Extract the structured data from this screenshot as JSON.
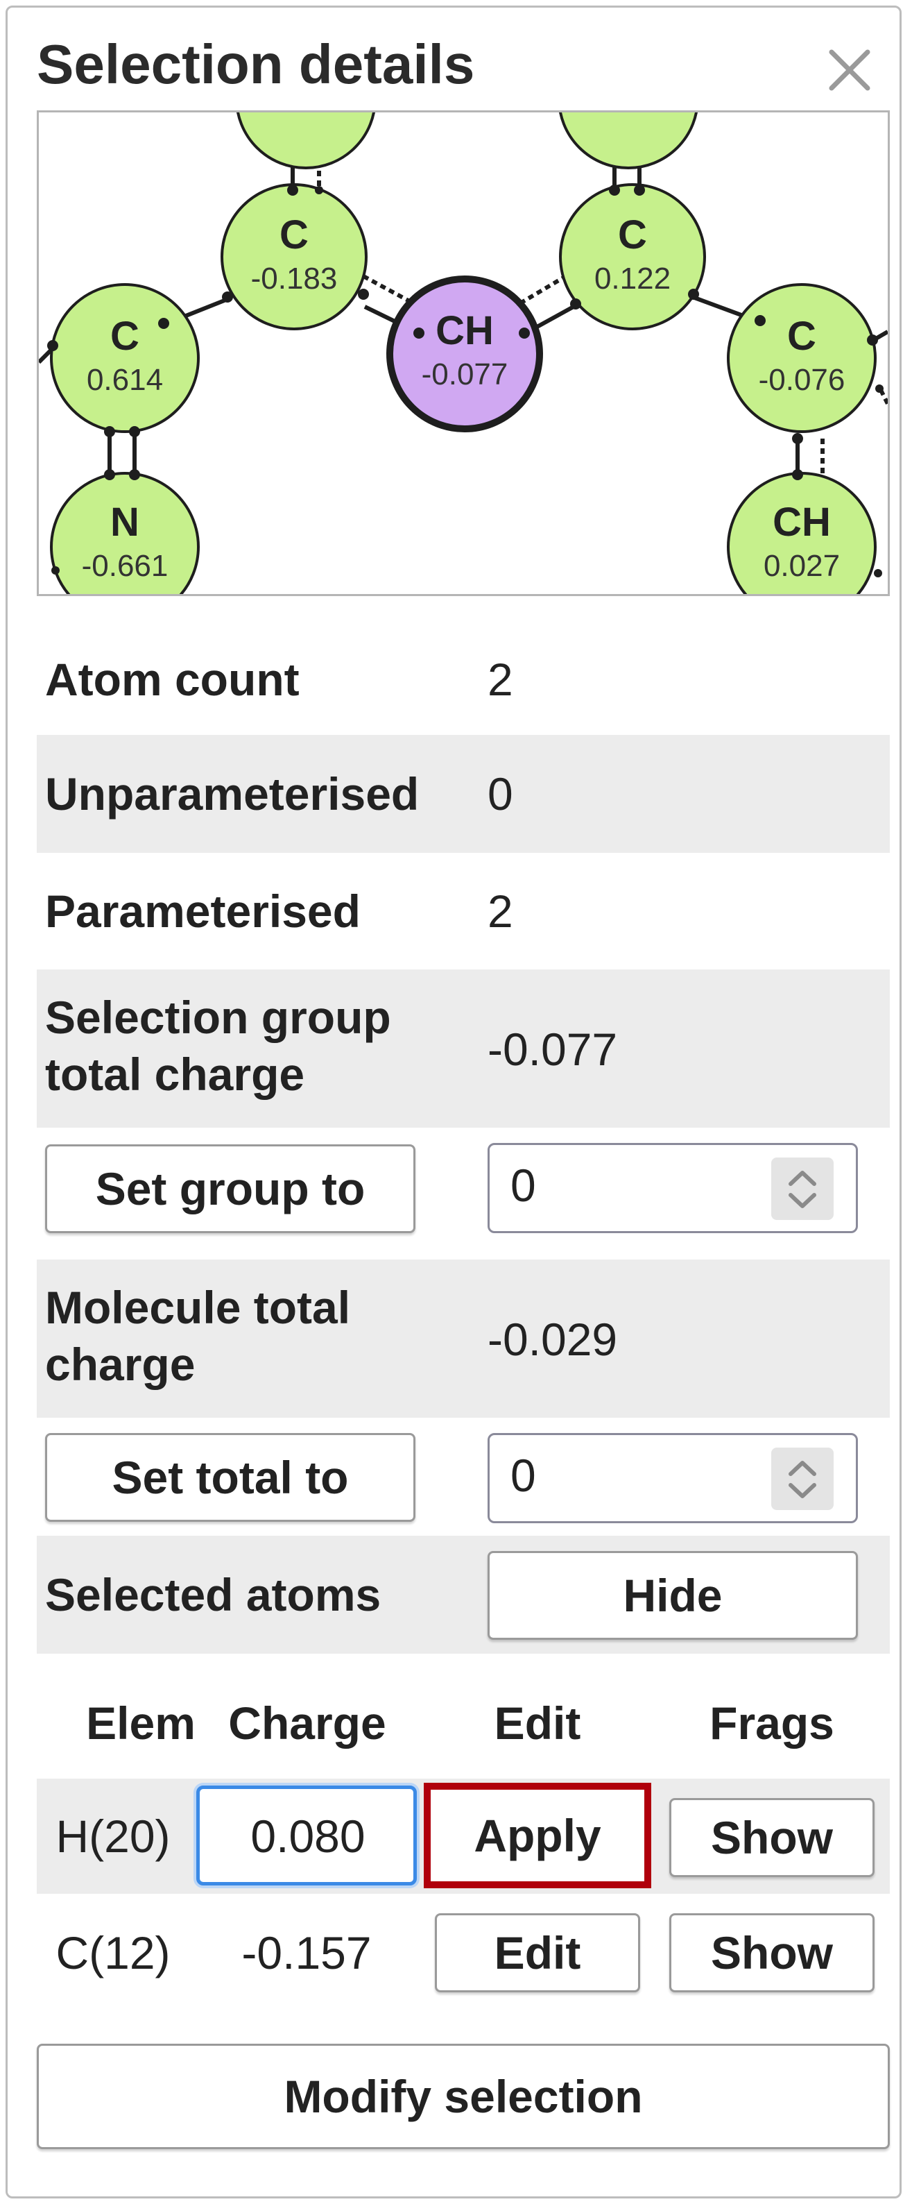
{
  "panel": {
    "title": "Selection details",
    "close_icon": "close-icon"
  },
  "molecule": {
    "atoms": [
      {
        "element": "C",
        "charge": "-0.183"
      },
      {
        "element": "C",
        "charge": "0.614"
      },
      {
        "element": "CH",
        "charge": "-0.077",
        "selected": true
      },
      {
        "element": "C",
        "charge": "0.122"
      },
      {
        "element": "C",
        "charge": "-0.076"
      },
      {
        "element": "N",
        "charge": "-0.661"
      },
      {
        "element": "CH",
        "charge": "0.027"
      }
    ],
    "colors": {
      "atom_fill": "#c6f08c",
      "selected_fill": "#d0a8f2",
      "bond": "#1e1e1e"
    }
  },
  "stats": {
    "atom_count_label": "Atom count",
    "atom_count_value": "2",
    "unparam_label": "Unparameterised",
    "unparam_value": "0",
    "param_label": "Parameterised",
    "param_value": "2",
    "group_charge_label_line1": "Selection group",
    "group_charge_label_line2": "total charge",
    "group_charge_value": "-0.077",
    "set_group_button": "Set group to",
    "set_group_value": "0",
    "molecule_charge_label_line1": "Molecule total",
    "molecule_charge_label_line2": "charge",
    "molecule_charge_value": "-0.029",
    "set_total_button": "Set total to",
    "set_total_value": "0",
    "selected_atoms_label": "Selected atoms",
    "hide_button": "Hide"
  },
  "table": {
    "headers": {
      "elem": "Elem",
      "charge": "Charge",
      "edit": "Edit",
      "frags": "Frags"
    },
    "rows": [
      {
        "elem": "H(20)",
        "charge": "0.080",
        "edit": "Apply",
        "frags": "Show",
        "editing": true
      },
      {
        "elem": "C(12)",
        "charge": "-0.157",
        "edit": "Edit",
        "frags": "Show",
        "editing": false
      }
    ]
  },
  "footer": {
    "modify_button": "Modify selection"
  },
  "colors": {
    "row_shade": "#ececec",
    "focus_blue": "#3b8ae6",
    "highlight_red": "#b0000c"
  }
}
